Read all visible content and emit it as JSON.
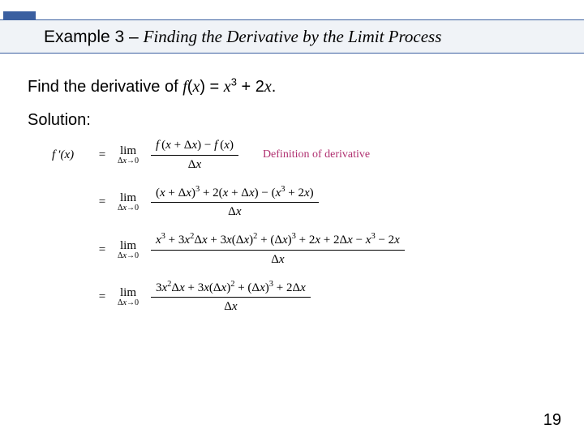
{
  "colors": {
    "accent": "#3a5fa0",
    "banner_bg": "#f0f3f7",
    "text": "#000000",
    "annotation": "#b03070",
    "page_bg": "#ffffff"
  },
  "header": {
    "title_prefix": "Example 3 – ",
    "title_italic": "Finding the Derivative by the Limit Process"
  },
  "problem": {
    "lead": "Find the derivative of ",
    "fn_lhs": "f",
    "fn_arg_open": "(",
    "fn_var": "x",
    "fn_arg_close": ") = ",
    "rhs_var": "x",
    "rhs_exp": "3",
    "rhs_plus": " + 2",
    "rhs_var2": "x",
    "rhs_end": "."
  },
  "solution_label": "Solution:",
  "math": {
    "lhs_fprime": "f ′(x)",
    "eq": "=",
    "limit_top": "lim",
    "limit_bot": "Δx→0",
    "row1_num": "f (x + Δx) − f (x)",
    "row1_den": "Δx",
    "row1_note": "Definition of derivative",
    "row2_num": "(x + Δx)³ + 2(x + Δx) − (x³ + 2x)",
    "row2_den": "Δx",
    "row3_num": "x³ + 3x²Δx + 3x(Δx)² + (Δx)³ + 2x + 2Δx − x³ − 2x",
    "row3_den": "Δx",
    "row4_num": "3x²Δx + 3x(Δx)² + (Δx)³ + 2Δx",
    "row4_den": "Δx"
  },
  "page_number": "19",
  "fontsize": {
    "title": 21,
    "body": 20,
    "math": 15,
    "annotation": 14,
    "limit_sub": 10
  }
}
